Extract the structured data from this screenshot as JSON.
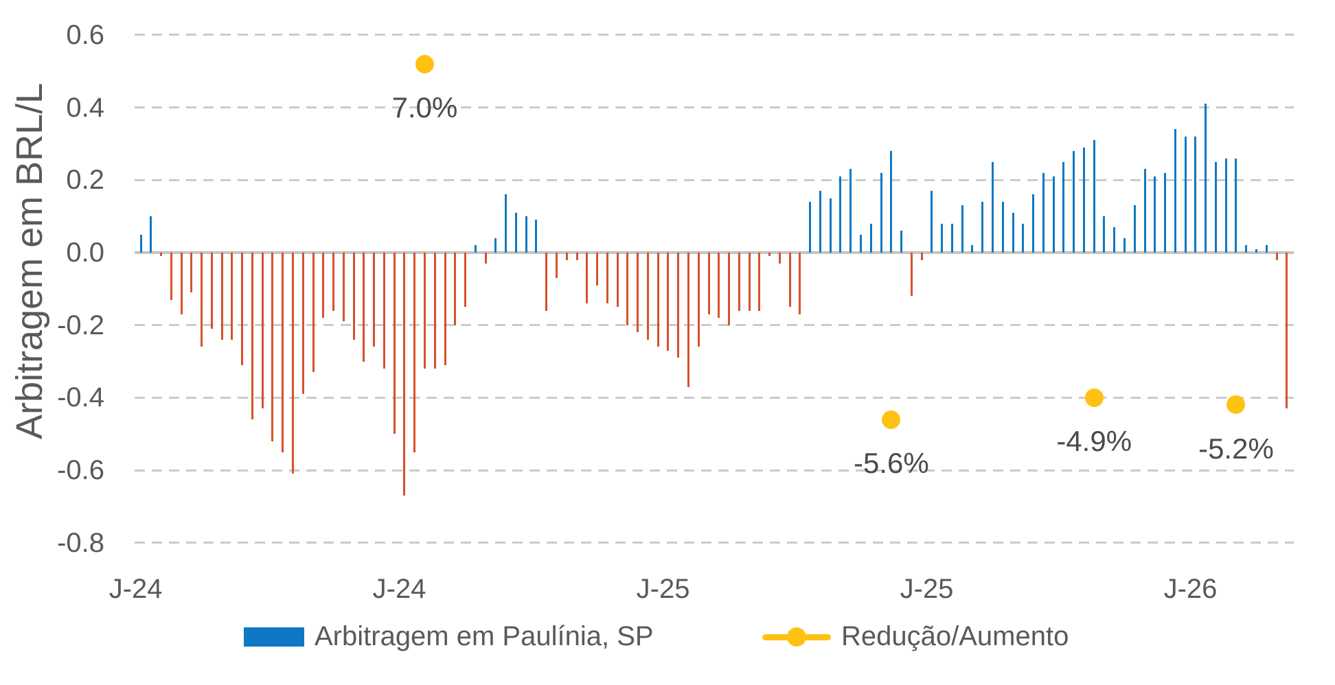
{
  "colors": {
    "bar_positive": "#0e78c4",
    "bar_negative": "#d8502c",
    "marker_yellow": "#ffc213",
    "text_gray": "#595959",
    "gridline": "#cbcbcb",
    "zero_axis": "#c3c3c3"
  },
  "chart_data": {
    "type": "bar",
    "title": "",
    "xlabel": "",
    "ylabel": "Arbitragem em BRL/L",
    "ylim": [
      -0.8,
      0.6
    ],
    "yticks": [
      0.6,
      0.4,
      0.2,
      0.0,
      -0.2,
      -0.4,
      -0.6,
      -0.8
    ],
    "grid": "dashed-horizontal",
    "legend_position": "bottom",
    "x_axis": {
      "unit": "weeks",
      "bar_count": 114,
      "tick_bar_indices": [
        1,
        27,
        53,
        79,
        105
      ],
      "tick_labels": [
        "J-24",
        "J-24",
        "J-25",
        "J-25",
        "J-26"
      ]
    },
    "series": [
      {
        "name": "Arbitragem em Paulínia, SP",
        "type": "bar",
        "values": [
          0.05,
          0.1,
          -0.01,
          -0.13,
          -0.17,
          -0.11,
          -0.26,
          -0.21,
          -0.24,
          -0.24,
          -0.31,
          -0.46,
          -0.43,
          -0.52,
          -0.55,
          -0.61,
          -0.39,
          -0.33,
          -0.18,
          -0.16,
          -0.19,
          -0.24,
          -0.3,
          -0.26,
          -0.32,
          -0.5,
          -0.67,
          -0.55,
          -0.32,
          -0.32,
          -0.31,
          -0.2,
          -0.15,
          0.02,
          -0.03,
          0.04,
          0.16,
          0.11,
          0.1,
          0.09,
          -0.16,
          -0.07,
          -0.02,
          -0.02,
          -0.14,
          -0.09,
          -0.14,
          -0.15,
          -0.2,
          -0.22,
          -0.24,
          -0.26,
          -0.27,
          -0.29,
          -0.37,
          -0.26,
          -0.17,
          -0.18,
          -0.2,
          -0.16,
          -0.16,
          -0.16,
          -0.01,
          -0.03,
          -0.15,
          -0.17,
          0.14,
          0.17,
          0.15,
          0.21,
          0.23,
          0.05,
          0.08,
          0.22,
          0.28,
          0.06,
          -0.12,
          -0.02,
          0.17,
          0.08,
          0.08,
          0.13,
          0.02,
          0.14,
          0.25,
          0.14,
          0.11,
          0.08,
          0.16,
          0.22,
          0.21,
          0.25,
          0.28,
          0.29,
          0.31,
          0.1,
          0.07,
          0.04,
          0.13,
          0.23,
          0.21,
          0.22,
          0.34,
          0.32,
          0.32,
          0.41,
          0.25,
          0.26,
          0.26,
          0.02,
          0.01,
          0.02,
          -0.02,
          -0.43
        ]
      },
      {
        "name": "Redução/Aumento",
        "type": "point",
        "points": [
          {
            "bar_index": 29,
            "y_brl": 0.52,
            "label": "7.0%"
          },
          {
            "bar_index": 75,
            "y_brl": -0.46,
            "label": "-5.6%"
          },
          {
            "bar_index": 95,
            "y_brl": -0.4,
            "label": "-4.9%"
          },
          {
            "bar_index": 109,
            "y_brl": -0.42,
            "label": "-5.2%"
          }
        ]
      }
    ]
  }
}
